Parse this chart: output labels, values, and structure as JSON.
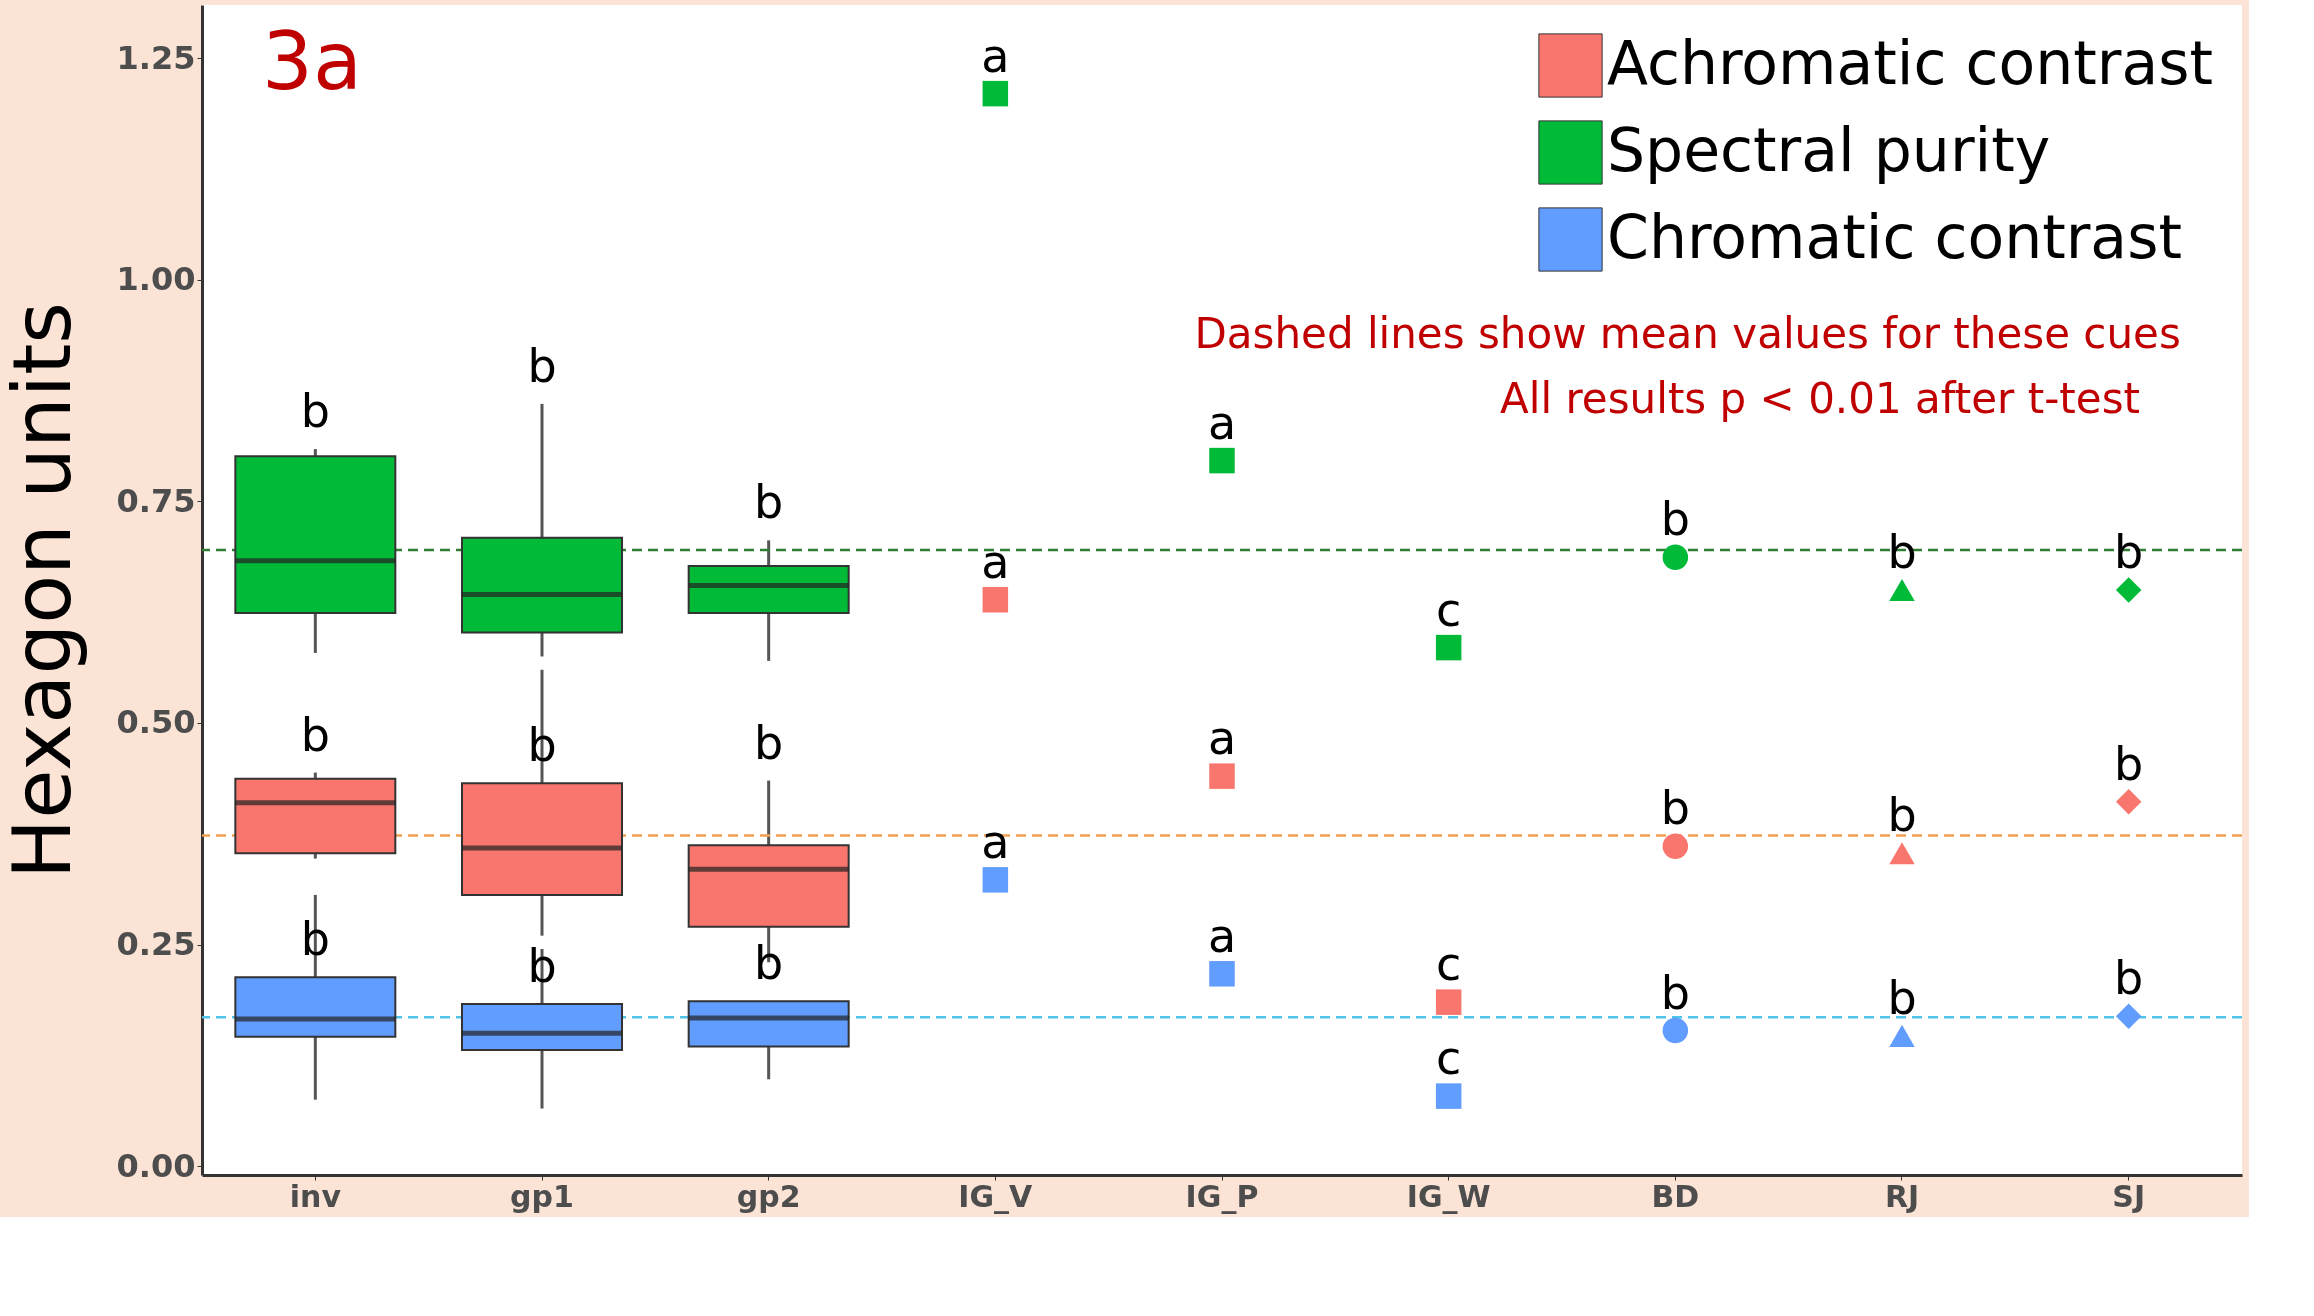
{
  "chart_data": {
    "type": "box",
    "ylabel": "Hexagon units",
    "categories": [
      "inv",
      "gp1",
      "gp2",
      "IG_V",
      "IG_P",
      "IG_W",
      "BD",
      "RJ",
      "SJ"
    ],
    "ylim": [
      -0.01,
      1.31
    ],
    "yticks": [
      {
        "value": 0,
        "label": "0.00"
      },
      {
        "value": 0.25,
        "label": "0.25"
      },
      {
        "value": 0.5,
        "label": "0.50"
      },
      {
        "value": 0.75,
        "label": "0.75"
      },
      {
        "value": 1,
        "label": "1.00"
      },
      {
        "value": 1.25,
        "label": "1.25"
      }
    ],
    "legend": "top right",
    "series": [
      {
        "name": "Achromatic contrast",
        "type": "box",
        "color": "#f8766d",
        "x": [
          "inv",
          "gp1",
          "gp2"
        ],
        "boxes": [
          {
            "low": 0.347,
            "q1": 0.353,
            "median": 0.41,
            "q3": 0.437,
            "high": 0.444
          },
          {
            "low": 0.26,
            "q1": 0.306,
            "median": 0.359,
            "q3": 0.432,
            "high": 0.56
          },
          {
            "low": 0.23,
            "q1": 0.27,
            "median": 0.335,
            "q3": 0.362,
            "high": 0.435
          }
        ]
      },
      {
        "name": "Spectral purity",
        "type": "box",
        "color": "#00ba38",
        "x": [
          "inv",
          "gp1",
          "gp2"
        ],
        "boxes": [
          {
            "low": 0.579,
            "q1": 0.624,
            "median": 0.683,
            "q3": 0.801,
            "high": 0.809
          },
          {
            "low": 0.575,
            "q1": 0.602,
            "median": 0.645,
            "q3": 0.709,
            "high": 0.86
          },
          {
            "low": 0.57,
            "q1": 0.624,
            "median": 0.655,
            "q3": 0.677,
            "high": 0.706
          }
        ]
      },
      {
        "name": "Chromatic contrast",
        "type": "box",
        "color": "#619cff",
        "x": [
          "inv",
          "gp1",
          "gp2"
        ],
        "boxes": [
          {
            "low": 0.075,
            "q1": 0.146,
            "median": 0.166,
            "q3": 0.213,
            "high": 0.306
          },
          {
            "low": 0.065,
            "q1": 0.131,
            "median": 0.15,
            "q3": 0.183,
            "high": 0.245
          },
          {
            "low": 0.098,
            "q1": 0.135,
            "median": 0.167,
            "q3": 0.186,
            "high": 0.186
          }
        ]
      },
      {
        "type": "scatter",
        "marker": "square",
        "color": "#f8766d",
        "x": [
          "IG_V",
          "IG_P",
          "IG_W"
        ],
        "values": [
          0.639,
          0.44,
          0.185
        ]
      },
      {
        "type": "scatter",
        "marker": "square",
        "color": "#00ba38",
        "x": [
          "IG_V",
          "IG_P",
          "IG_W"
        ],
        "values": [
          1.21,
          0.796,
          0.585
        ]
      },
      {
        "type": "scatter",
        "marker": "square",
        "color": "#619cff",
        "x": [
          "IG_V",
          "IG_P",
          "IG_W"
        ],
        "values": [
          0.323,
          0.217,
          0.079
        ]
      },
      {
        "type": "scatter",
        "marker": "circle",
        "color": "#f8766d",
        "x": [
          "BD"
        ],
        "values": [
          0.361
        ]
      },
      {
        "type": "scatter",
        "marker": "circle",
        "color": "#00ba38",
        "x": [
          "BD"
        ],
        "values": [
          0.687
        ]
      },
      {
        "type": "scatter",
        "marker": "circle",
        "color": "#619cff",
        "x": [
          "BD"
        ],
        "values": [
          0.153
        ]
      },
      {
        "type": "scatter",
        "marker": "triangle",
        "color": "#f8766d",
        "x": [
          "RJ"
        ],
        "values": [
          0.353
        ]
      },
      {
        "type": "scatter",
        "marker": "triangle",
        "color": "#00ba38",
        "x": [
          "RJ"
        ],
        "values": [
          0.65
        ]
      },
      {
        "type": "scatter",
        "marker": "triangle",
        "color": "#619cff",
        "x": [
          "RJ"
        ],
        "values": [
          0.147
        ]
      },
      {
        "type": "scatter",
        "marker": "diamond",
        "color": "#f8766d",
        "x": [
          "SJ"
        ],
        "values": [
          0.411
        ]
      },
      {
        "type": "scatter",
        "marker": "diamond",
        "color": "#00ba38",
        "x": [
          "SJ"
        ],
        "values": [
          0.65
        ]
      },
      {
        "type": "scatter",
        "marker": "diamond",
        "color": "#619cff",
        "x": [
          "SJ"
        ],
        "values": [
          0.169
        ]
      }
    ],
    "ref_lines": [
      {
        "axis": "y",
        "value": 0.695,
        "color": "#2e7d32",
        "line_style": "dashed"
      },
      {
        "axis": "y",
        "value": 0.373,
        "color": "#f0a050",
        "line_style": "dashed"
      },
      {
        "axis": "y",
        "value": 0.168,
        "color": "#4fc3e8",
        "line_style": "dashed"
      }
    ],
    "annotations": [
      "3a",
      "Dashed lines show mean values for these cues",
      "All results p < 0.01 after t-test",
      {
        "text": "b",
        "x": "inv",
        "y": 0.809
      },
      {
        "text": "b",
        "x": "inv",
        "y": 0.444
      },
      {
        "text": "b",
        "x": "inv",
        "y": 0.213
      },
      {
        "text": "b",
        "x": "gp1",
        "y": 0.86
      },
      {
        "text": "b",
        "x": "gp1",
        "y": 0.432
      },
      {
        "text": "b",
        "x": "gp1",
        "y": 0.183
      },
      {
        "text": "b",
        "x": "gp2",
        "y": 0.706
      },
      {
        "text": "b",
        "x": "gp2",
        "y": 0.435
      },
      {
        "text": "b",
        "x": "gp2",
        "y": 0.186
      },
      {
        "text": "a",
        "x": "IG_V",
        "y": 1.21
      },
      {
        "text": "a",
        "x": "IG_V",
        "y": 0.639
      },
      {
        "text": "a",
        "x": "IG_V",
        "y": 0.323
      },
      {
        "text": "a",
        "x": "IG_P",
        "y": 0.796
      },
      {
        "text": "a",
        "x": "IG_P",
        "y": 0.44
      },
      {
        "text": "a",
        "x": "IG_P",
        "y": 0.217
      },
      {
        "text": "c",
        "x": "IG_W",
        "y": 0.585
      },
      {
        "text": "c",
        "x": "IG_W",
        "y": 0.185
      },
      {
        "text": "c",
        "x": "IG_W",
        "y": 0.079
      },
      {
        "text": "b",
        "x": "BD",
        "y": 0.687
      },
      {
        "text": "b",
        "x": "BD",
        "y": 0.361
      },
      {
        "text": "b",
        "x": "BD",
        "y": 0.153
      },
      {
        "text": "b",
        "x": "RJ",
        "y": 0.65
      },
      {
        "text": "b",
        "x": "RJ",
        "y": 0.353
      },
      {
        "text": "b",
        "x": "RJ",
        "y": 0.147
      },
      {
        "text": "b",
        "x": "SJ",
        "y": 0.65
      },
      {
        "text": "b",
        "x": "SJ",
        "y": 0.411
      },
      {
        "text": "b",
        "x": "SJ",
        "y": 0.169
      }
    ]
  }
}
